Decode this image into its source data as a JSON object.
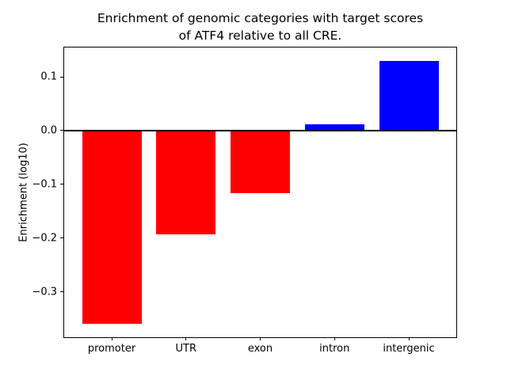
{
  "chart_data": {
    "type": "bar",
    "title": "Enrichment of genomic categories with target scores\nof ATF4 relative to all CRE.",
    "xlabel": "",
    "ylabel": "Enrichment (log10)",
    "categories": [
      "promoter",
      "UTR",
      "exon",
      "intron",
      "intergenic"
    ],
    "values": [
      -0.36,
      -0.193,
      -0.116,
      0.011,
      0.13
    ],
    "bar_colors": [
      "#ff0000",
      "#ff0000",
      "#ff0000",
      "#0000ff",
      "#0000ff"
    ],
    "negative_color": "#ff0000",
    "positive_color": "#0000ff",
    "bar_width": 0.8,
    "xlim": [
      -0.64,
      4.64
    ],
    "ylim": [
      -0.3845,
      0.1545
    ],
    "yticks": [
      {
        "value": 0.1,
        "label": "0.1"
      },
      {
        "value": 0.0,
        "label": "0.0"
      },
      {
        "value": -0.1,
        "label": "−0.1"
      },
      {
        "value": -0.2,
        "label": "−0.2"
      },
      {
        "value": -0.3,
        "label": "−0.3"
      }
    ],
    "grid": false,
    "legend": null,
    "zero_line": true,
    "axis_color": "#000000",
    "background_color": "#ffffff"
  }
}
